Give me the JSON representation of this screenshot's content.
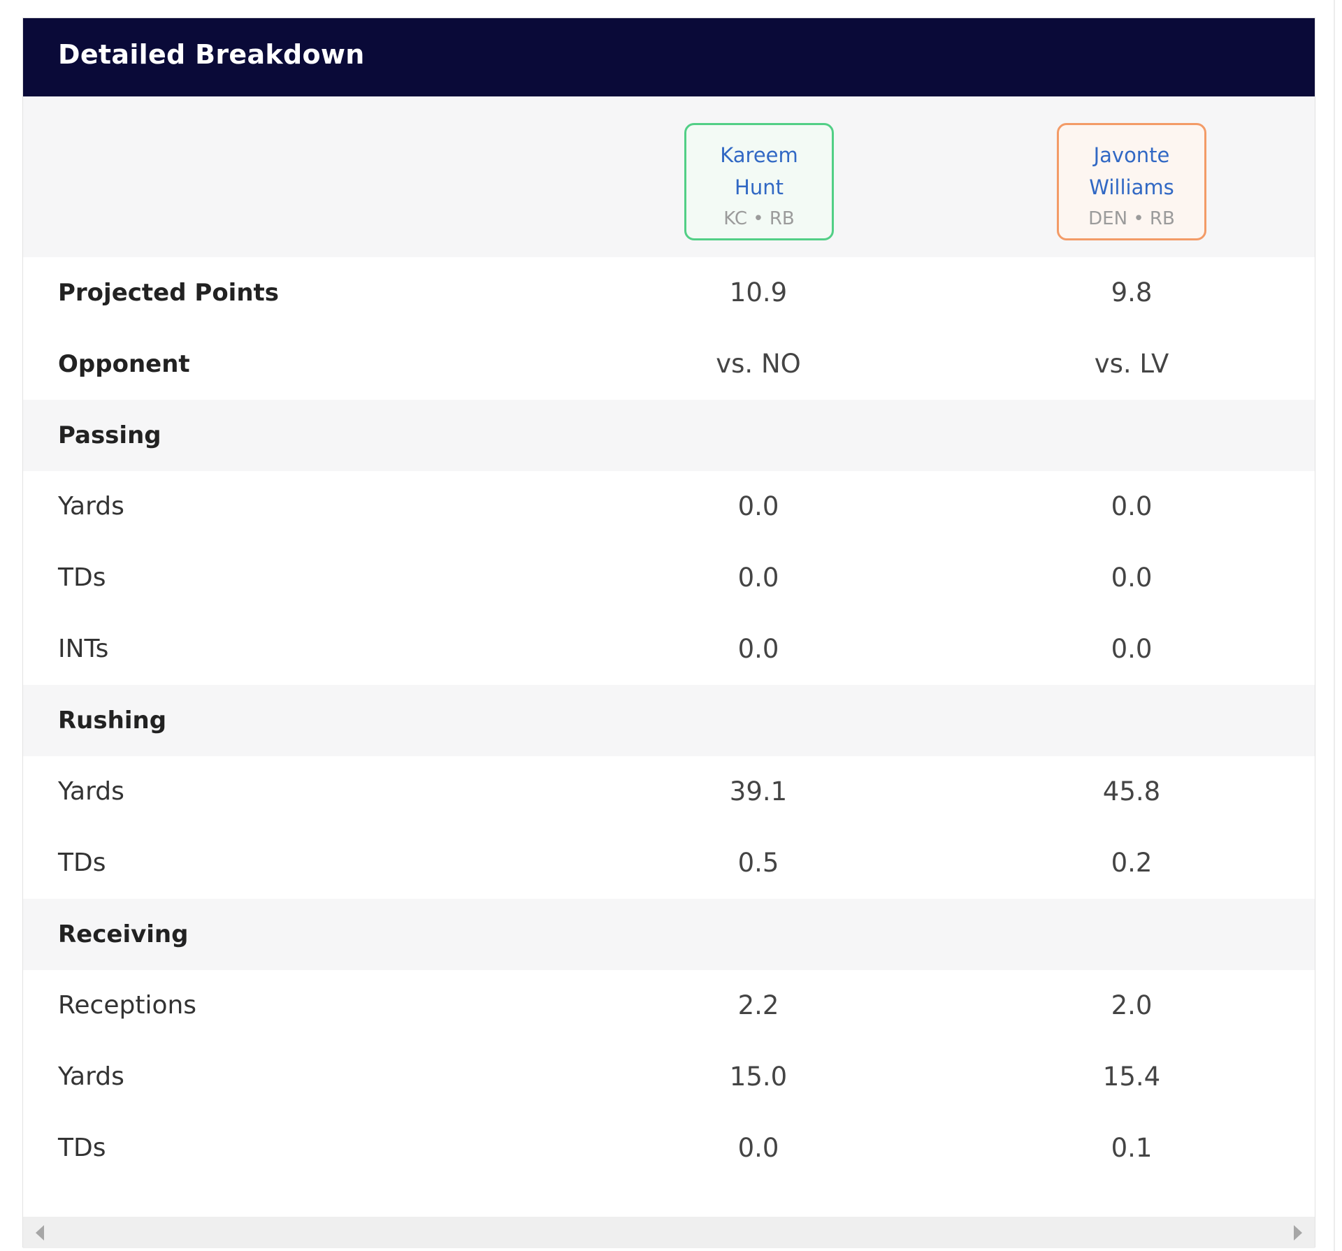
{
  "title": "Detailed Breakdown",
  "players": [
    {
      "first": "Kareem",
      "last": "Hunt",
      "meta": "KC • RB"
    },
    {
      "first": "Javonte",
      "last": "Williams",
      "meta": "DEN • RB"
    }
  ],
  "rows": [
    {
      "label": "Projected Points",
      "p1": "10.9",
      "p2": "9.8"
    },
    {
      "label": "Opponent",
      "p1": "vs. NO",
      "p2": "vs. LV"
    },
    {
      "label": "Passing"
    },
    {
      "label": "Yards",
      "p1": "0.0",
      "p2": "0.0"
    },
    {
      "label": "TDs",
      "p1": "0.0",
      "p2": "0.0"
    },
    {
      "label": "INTs",
      "p1": "0.0",
      "p2": "0.0"
    },
    {
      "label": "Rushing"
    },
    {
      "label": "Yards",
      "p1": "39.1",
      "p2": "45.8"
    },
    {
      "label": "TDs",
      "p1": "0.5",
      "p2": "0.2"
    },
    {
      "label": "Receiving"
    },
    {
      "label": "Receptions",
      "p1": "2.2",
      "p2": "2.0"
    },
    {
      "label": "Yards",
      "p1": "15.0",
      "p2": "15.4"
    },
    {
      "label": "TDs",
      "p1": "0.0",
      "p2": "0.1"
    }
  ],
  "icons": {
    "scroll_left": "triangle-left",
    "scroll_right": "triangle-right"
  },
  "colors": {
    "header_bg": "#0a0a38",
    "player1_border": "#52cf86",
    "player2_border": "#f39b67",
    "player_name": "#3168c4"
  }
}
